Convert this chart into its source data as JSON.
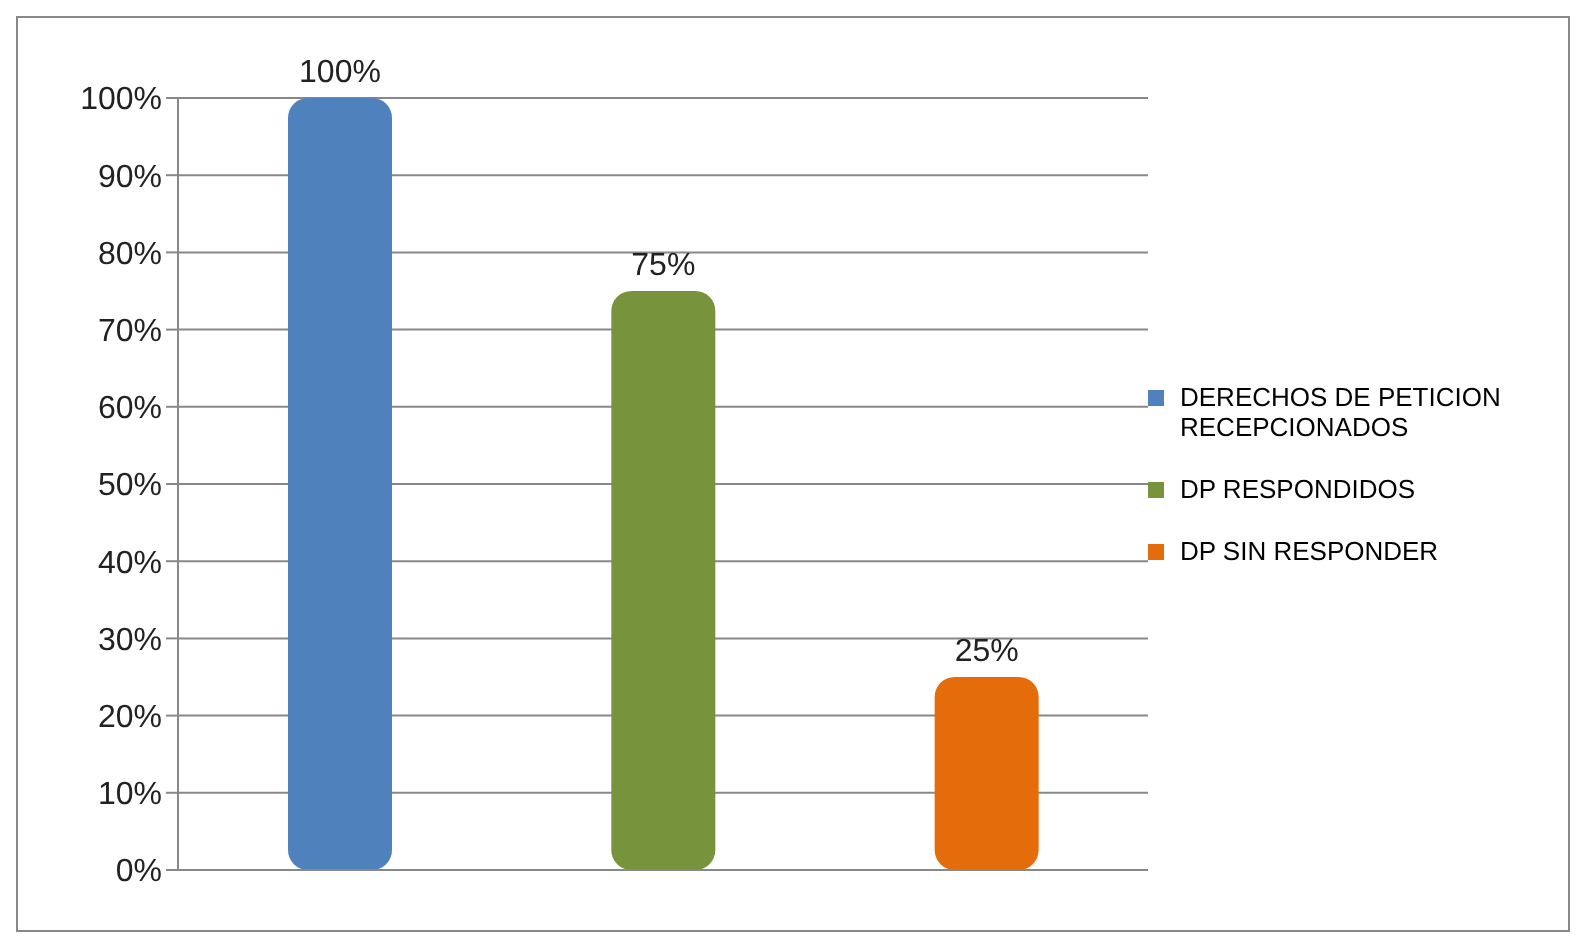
{
  "chart_data": {
    "type": "bar",
    "categories": [
      null,
      null,
      null
    ],
    "series": [
      {
        "name": "DERECHOS DE PETICION RECEPCIONADOS",
        "color": "#4f81bd",
        "values": [
          100,
          null,
          null
        ],
        "value_labels": [
          "100%",
          null,
          null
        ]
      },
      {
        "name": "DP RESPONDIDOS",
        "color": "#77933c",
        "values": [
          null,
          75,
          null
        ],
        "value_labels": [
          null,
          "75%",
          null
        ]
      },
      {
        "name": "DP SIN RESPONDER",
        "color": "#e46c0a",
        "values": [
          null,
          null,
          25
        ],
        "value_labels": [
          null,
          null,
          "25%"
        ]
      }
    ],
    "ylim": [
      0,
      100
    ],
    "yticks": [
      {
        "value": 0,
        "label": "0%"
      },
      {
        "value": 10,
        "label": "10%"
      },
      {
        "value": 20,
        "label": "20%"
      },
      {
        "value": 30,
        "label": "30%"
      },
      {
        "value": 40,
        "label": "40%"
      },
      {
        "value": 50,
        "label": "50%"
      },
      {
        "value": 60,
        "label": "60%"
      },
      {
        "value": 70,
        "label": "70%"
      },
      {
        "value": 80,
        "label": "80%"
      },
      {
        "value": 90,
        "label": "90%"
      },
      {
        "value": 100,
        "label": "100%"
      }
    ],
    "grid": "y",
    "legend": "right"
  }
}
